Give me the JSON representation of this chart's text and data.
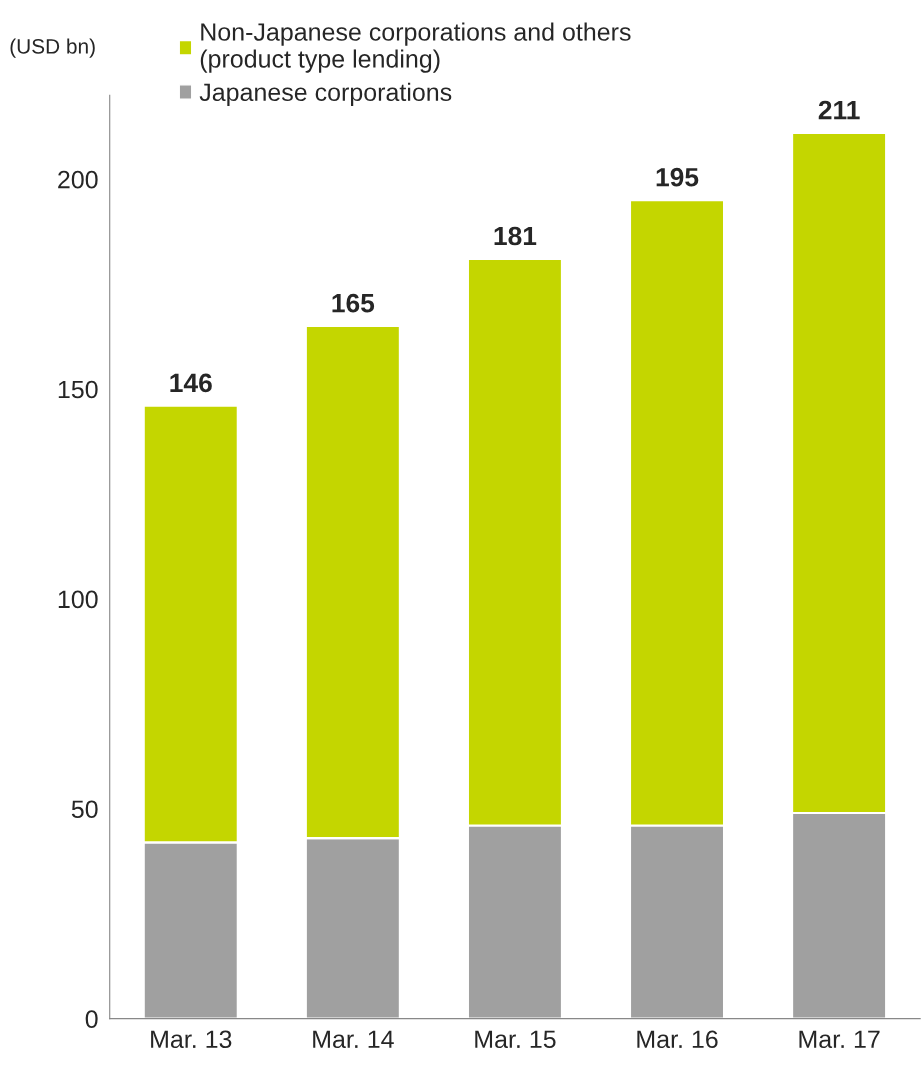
{
  "chart_data": {
    "type": "bar",
    "stacked": true,
    "ylabel": "(USD bn)",
    "categories": [
      "Mar. 13",
      "Mar. 14",
      "Mar. 15",
      "Mar. 16",
      "Mar. 17"
    ],
    "series": [
      {
        "name": "Japanese corporations",
        "color": "#a0a0a0",
        "values": [
          42,
          43,
          46,
          46,
          49
        ]
      },
      {
        "name": "Non-Japanese corporations and others\n(product type lending)",
        "color": "#c4d600",
        "values": [
          104,
          122,
          135,
          149,
          162
        ]
      }
    ],
    "totals": [
      "146",
      "165",
      "181",
      "195",
      "211"
    ],
    "ylim": [
      0,
      220
    ],
    "yticks": [
      0,
      50,
      100,
      150,
      200
    ],
    "grid": false,
    "legend": "top"
  }
}
